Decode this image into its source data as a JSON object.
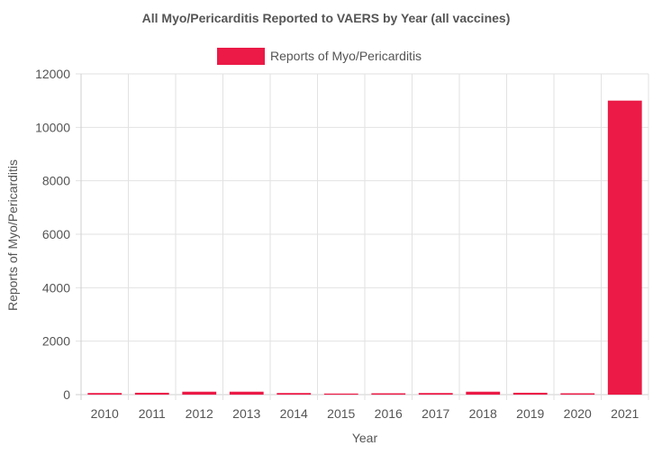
{
  "chart_data": {
    "type": "bar",
    "title": "All Myo/Pericarditis Reported to VAERS by Year (all vaccines)",
    "xlabel": "Year",
    "ylabel": "Reports of Myo/Pericarditis",
    "categories": [
      "2010",
      "2011",
      "2012",
      "2013",
      "2014",
      "2015",
      "2016",
      "2017",
      "2018",
      "2019",
      "2020",
      "2021"
    ],
    "series": [
      {
        "name": "Reports of Myo/Pericarditis",
        "color": "#eb1a46",
        "values": [
          60,
          70,
          110,
          110,
          60,
          40,
          50,
          60,
          110,
          70,
          50,
          11000
        ]
      }
    ],
    "ylim": [
      0,
      12000
    ],
    "yticks": [
      "0",
      "2000",
      "4000",
      "6000",
      "8000",
      "10000",
      "12000"
    ],
    "grid": true,
    "legend": "top-center"
  }
}
